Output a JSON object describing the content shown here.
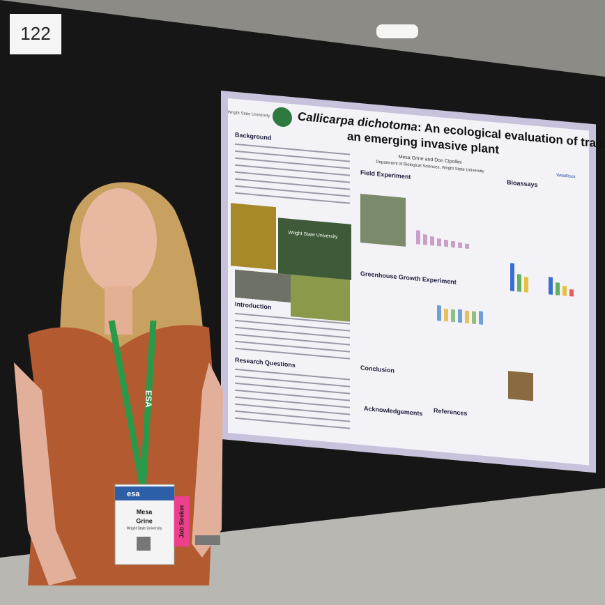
{
  "board_number": "122",
  "poster": {
    "logo_left": "Wright State University",
    "logo_right": "WestRock",
    "title": [
      "Callicarpa dichotoma",
      ": An ecological evaluation of traits in",
      "an emerging invasive plant"
    ],
    "authors": "Mesa Grine and Don Cipollini",
    "affiliation": "Department of Biological Sciences, Wright State University",
    "sections": {
      "background": "Background",
      "introduction": "Introduction",
      "research_questions": "Research Questions",
      "field_experiment": "Field Experiment",
      "greenhouse": "Greenhouse Growth Experiment",
      "conclusion": "Conclusion",
      "acknowledgements": "Acknowledgements",
      "references": "References",
      "bioassays": "Bioassays"
    },
    "map_label": "Wright State University"
  },
  "badge": {
    "org": "esa",
    "first_name": "Mesa",
    "last_name": "Grine",
    "affiliation": "Wright State University",
    "ribbon": "Job Seeker"
  },
  "lanyard": "ESA"
}
